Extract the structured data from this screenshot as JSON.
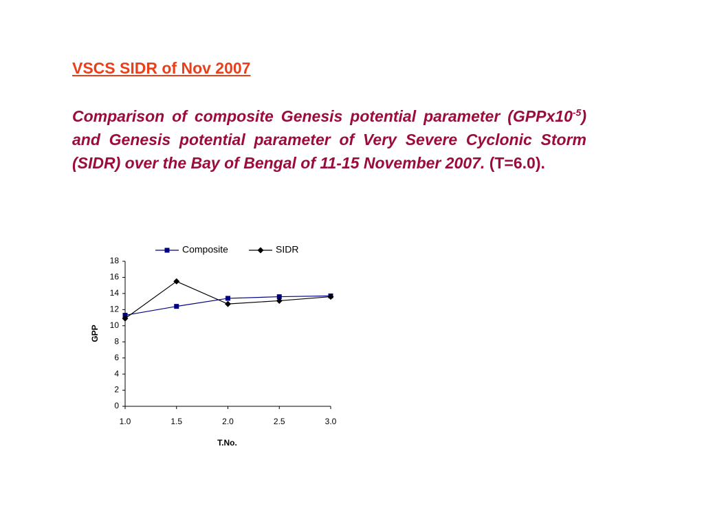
{
  "heading": "VSCS SIDR of Nov 2007",
  "paragraph": {
    "part1": "Comparison of composite Genesis potential parameter (GPPx10",
    "superscript": "-5",
    "part2": ") and Genesis potential parameter of Very Severe Cyclonic Storm (SIDR) over the Bay of Bengal of 11-15 November 2007.",
    "part3": " (T=6.0)."
  },
  "chart_data": {
    "type": "line",
    "x": [
      1.0,
      1.5,
      2.0,
      2.5,
      3.0
    ],
    "series": [
      {
        "name": "Composite",
        "color": "#000080",
        "marker": "square",
        "values": [
          11.3,
          12.4,
          13.4,
          13.6,
          13.7
        ]
      },
      {
        "name": "SIDR",
        "color": "#000000",
        "marker": "diamond",
        "values": [
          10.9,
          15.5,
          12.7,
          13.1,
          13.6
        ]
      }
    ],
    "xlim": [
      1.0,
      3.0
    ],
    "xticks": [
      {
        "value": 1,
        "label": "1.0"
      },
      {
        "value": 1.5,
        "label": "1.5"
      },
      {
        "value": 2,
        "label": "2.0"
      },
      {
        "value": 2.5,
        "label": "2.5"
      },
      {
        "value": 3,
        "label": "3.0"
      }
    ],
    "ylim": [
      0,
      18
    ],
    "yticks": [
      0,
      2,
      4,
      6,
      8,
      10,
      12,
      14,
      16,
      18
    ],
    "x_label": "T.No.",
    "y_label": "GPP",
    "legend": "top"
  }
}
